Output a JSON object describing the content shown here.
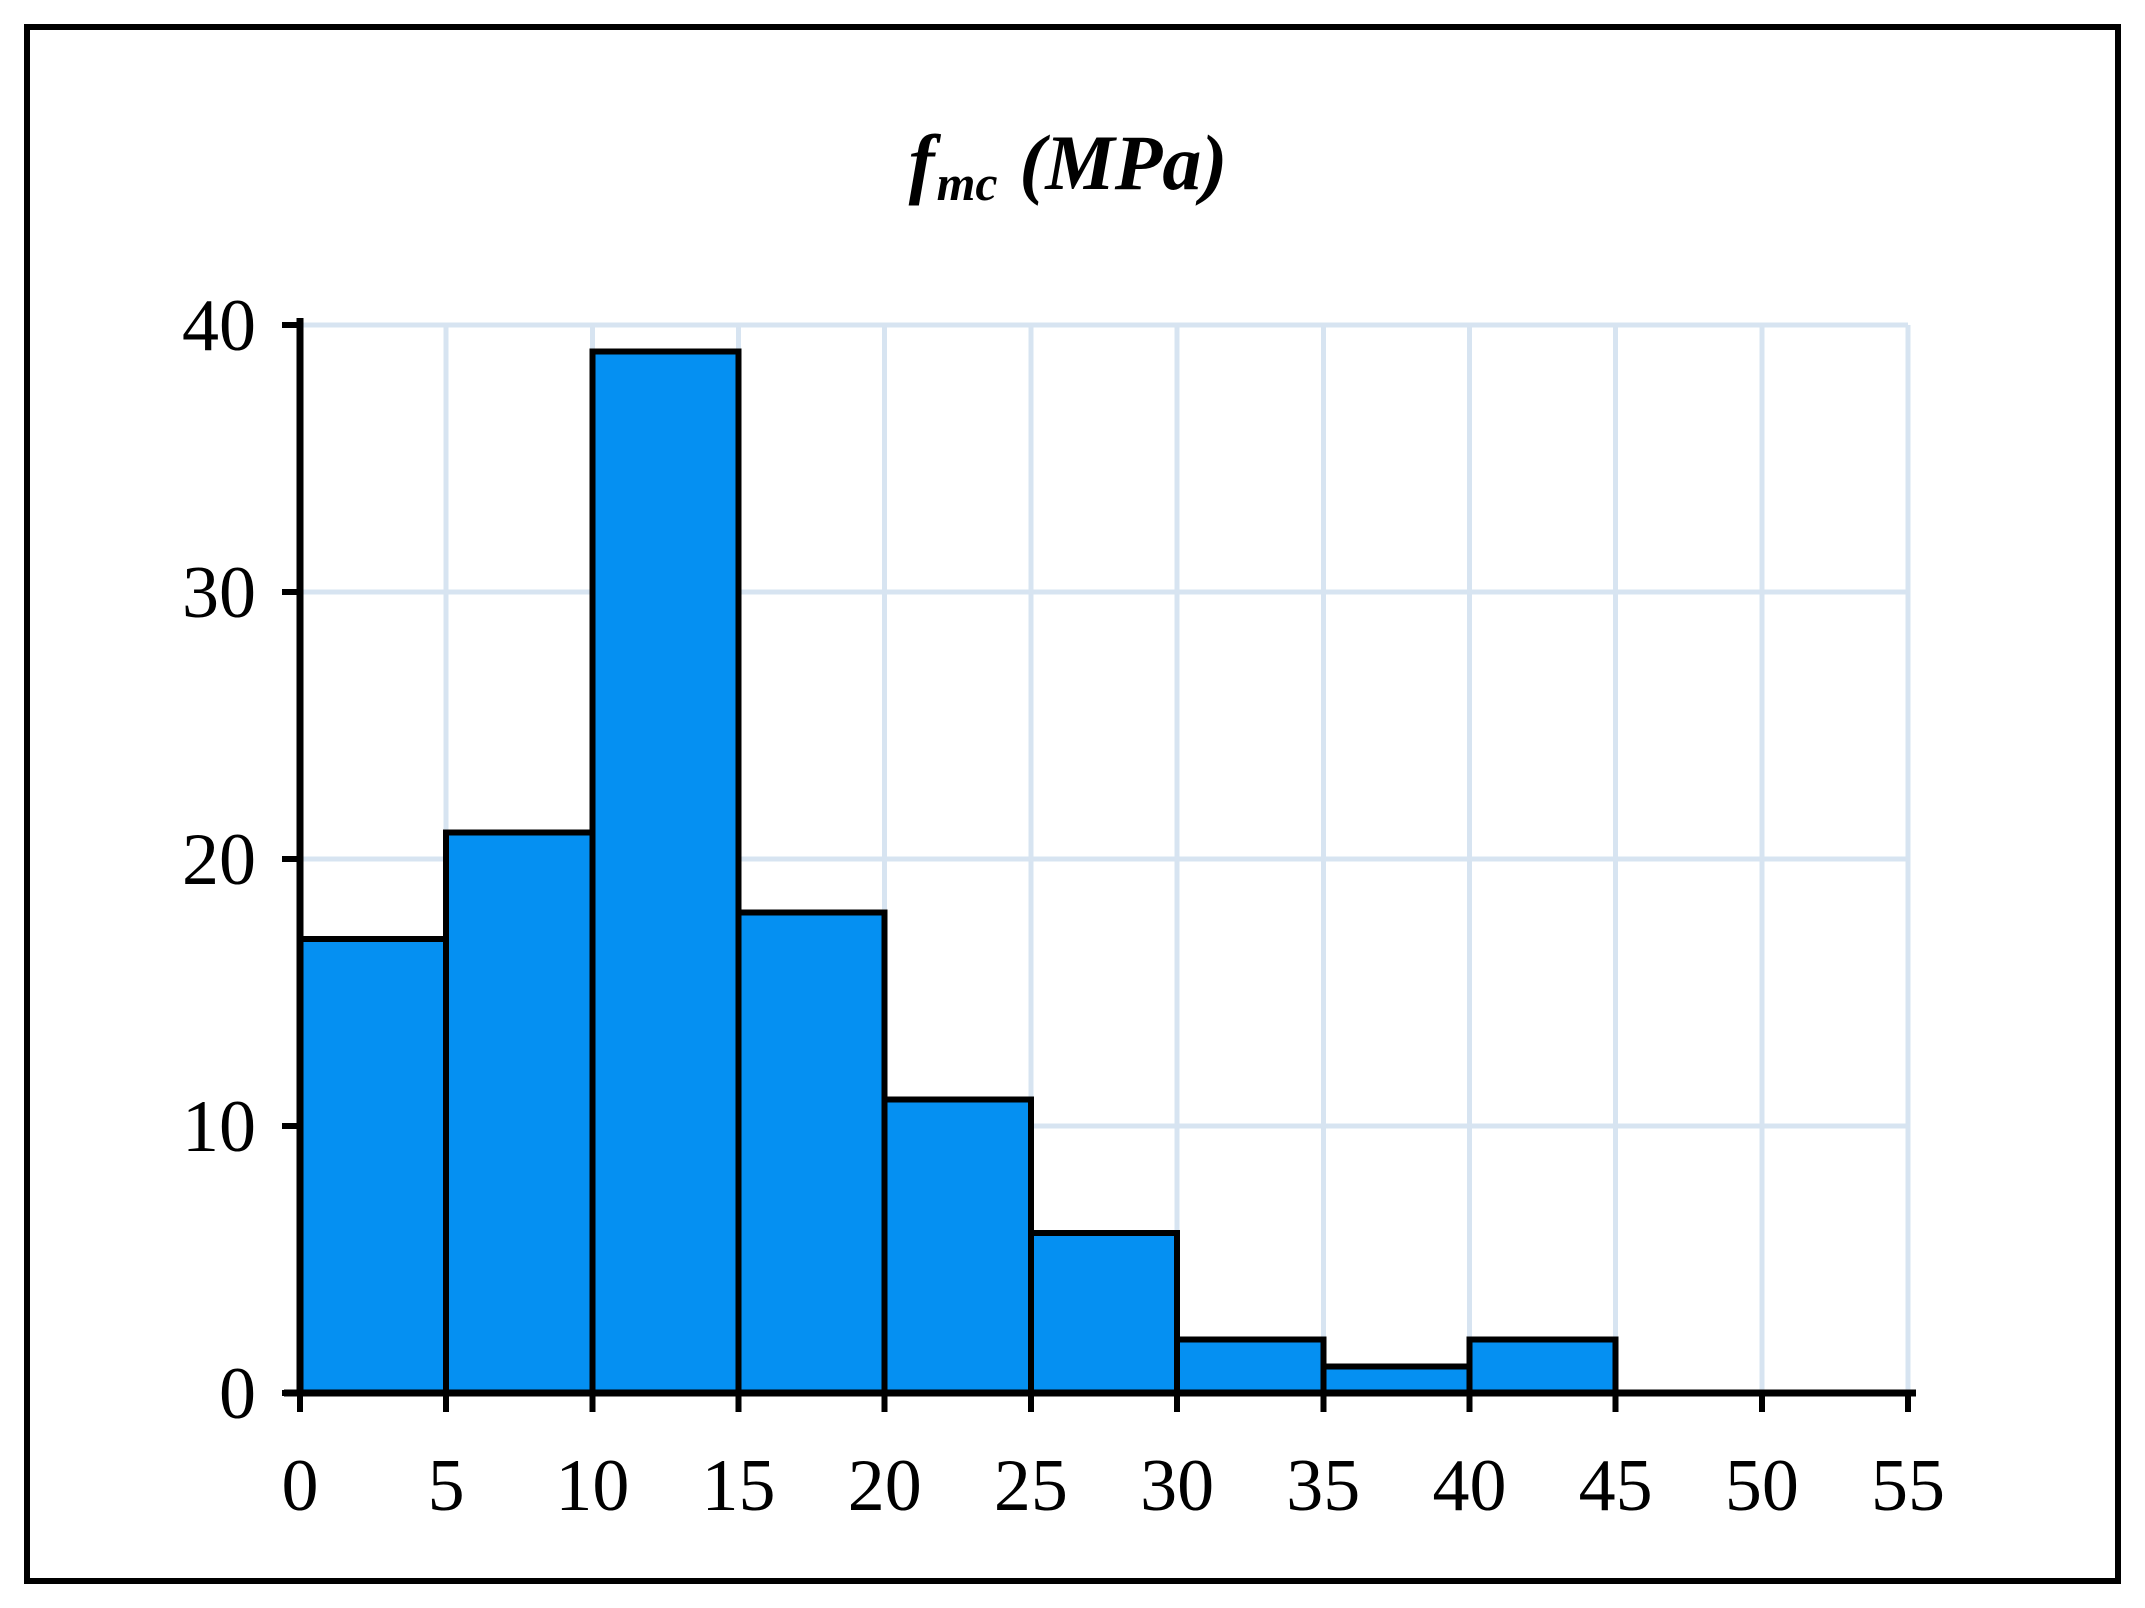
{
  "title": {
    "symbol": "f",
    "subscript": "mc",
    "unit": "(MPa)"
  },
  "chart_data": {
    "type": "bar",
    "subtype": "histogram",
    "title": "f_mc (MPa)",
    "xlabel": "",
    "ylabel": "",
    "bin_width": 5,
    "bin_edges": [
      0,
      5,
      10,
      15,
      20,
      25,
      30,
      35,
      40,
      45,
      50,
      55
    ],
    "categories": [
      "0-5",
      "5-10",
      "10-15",
      "15-20",
      "20-25",
      "25-30",
      "30-35",
      "35-40",
      "40-45",
      "45-50",
      "50-55"
    ],
    "values": [
      17,
      21,
      39,
      18,
      11,
      6,
      2,
      1,
      2,
      0,
      0
    ],
    "x_ticks": [
      0,
      5,
      10,
      15,
      20,
      25,
      30,
      35,
      40,
      45,
      50,
      55
    ],
    "y_ticks": [
      0,
      10,
      20,
      30,
      40
    ],
    "xlim": [
      0,
      55
    ],
    "ylim": [
      0,
      40
    ],
    "grid": true,
    "legend": false,
    "colors": {
      "bar_fill": "#0590F2",
      "bar_stroke": "#000000",
      "gridline": "#D7E4F1",
      "axis": "#000000",
      "background": "#FFFFFF",
      "frame": "#000000"
    }
  }
}
